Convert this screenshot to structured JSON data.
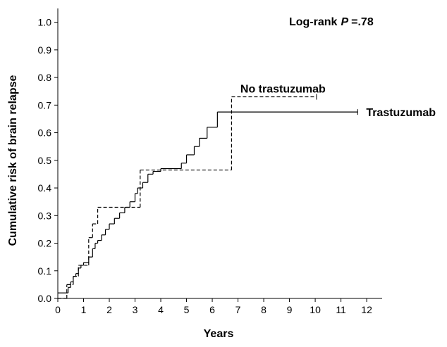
{
  "chart_data": {
    "type": "step",
    "annotation": [
      "Log-rank",
      "P",
      "=.78"
    ],
    "x_label": "Years",
    "y_label": "Cumulative risk of brain relapse",
    "xlim": [
      0,
      12.6
    ],
    "ylim": [
      0,
      1.05
    ],
    "xticks": [
      0,
      1,
      2,
      3,
      4,
      5,
      6,
      7,
      8,
      9,
      10,
      11,
      12
    ],
    "yticks": [
      {
        "value": 0,
        "label": "0.0"
      },
      0.1,
      0.2,
      0.3,
      0.4,
      0.5,
      0.6,
      0.7,
      0.8,
      0.9,
      {
        "value": 1,
        "label": "1.0"
      }
    ],
    "grid": false,
    "series": [
      {
        "name": "Trastuzumab",
        "color": "#000000",
        "dash": false,
        "x": [
          0,
          0.4,
          0.5,
          0.6,
          0.7,
          0.8,
          0.9,
          1.0,
          1.2,
          1.35,
          1.45,
          1.55,
          1.7,
          1.85,
          2.0,
          2.2,
          2.4,
          2.6,
          2.8,
          3.0,
          3.1,
          3.3,
          3.5,
          3.7,
          4.0,
          4.8,
          5.0,
          5.3,
          5.5,
          5.8,
          6.2,
          11.65
        ],
        "values": [
          0.02,
          0.04,
          0.06,
          0.08,
          0.09,
          0.11,
          0.12,
          0.13,
          0.15,
          0.18,
          0.2,
          0.21,
          0.23,
          0.25,
          0.27,
          0.29,
          0.31,
          0.33,
          0.35,
          0.38,
          0.4,
          0.42,
          0.45,
          0.46,
          0.47,
          0.49,
          0.52,
          0.55,
          0.58,
          0.62,
          0.675,
          0.675
        ]
      },
      {
        "name": "No trastuzumab",
        "color": "#000000",
        "dash": true,
        "x": [
          0,
          0.35,
          0.6,
          0.8,
          1.2,
          1.35,
          1.55,
          3.2,
          6.75,
          10.05
        ],
        "values": [
          0,
          0.05,
          0.08,
          0.12,
          0.22,
          0.27,
          0.33,
          0.465,
          0.73,
          0.73
        ]
      }
    ]
  }
}
